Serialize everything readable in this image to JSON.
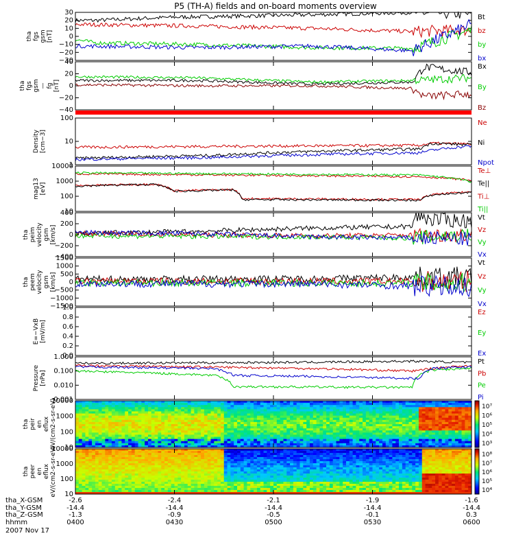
{
  "title": "P5 (TH-A) fields and on-board moments overview",
  "date": "2007 Nov 17",
  "orbit": {
    "row_labels": [
      "tha_X-GSM",
      "tha_Y-GSM",
      "tha_Z-GSM",
      "hhmm"
    ],
    "columns": [
      [
        "-2.6",
        "-14.4",
        "-1.3",
        "0400"
      ],
      [
        "-2.4",
        "-14.4",
        "-0.9",
        "0430"
      ],
      [
        "-2.1",
        "-14.4",
        "-0.5",
        "0500"
      ],
      [
        "-1.9",
        "-14.4",
        "-0.1",
        "0530"
      ],
      [
        "-1.6",
        "-14.4",
        "0.3",
        "0600"
      ]
    ]
  },
  "chart_data": [
    {
      "type": "line",
      "ylabel": "tha fgs gsm [nT]",
      "ylim": [
        -30,
        30
      ],
      "yticks": [
        "30",
        "20",
        "10",
        "0",
        "−10",
        "−20",
        "−30"
      ],
      "series": [
        {
          "name": "Bt",
          "color": "#000000"
        },
        {
          "name": "bz",
          "color": "#cc0000"
        },
        {
          "name": "by",
          "color": "#00cc00"
        },
        {
          "name": "bx",
          "color": "#0000cc"
        }
      ]
    },
    {
      "type": "line",
      "ylabel": "tha fgs gsm — fg [nT]",
      "ylim": [
        -50,
        40
      ],
      "yticks": [
        "40",
        "20",
        "0",
        "−20",
        "−40"
      ],
      "series": [
        {
          "name": "Bx",
          "color": "#000000"
        },
        {
          "name": "By",
          "color": "#00cc00"
        },
        {
          "name": "Bz",
          "color": "#880000"
        }
      ]
    },
    {
      "type": "line",
      "ylabel": "Density [cm−3]",
      "scale": "log",
      "ylim": [
        0.1,
        300
      ],
      "yticks": [
        "100",
        "10",
        "1"
      ],
      "series": [
        {
          "name": "Ne",
          "color": "#cc0000"
        },
        {
          "name": "Ni",
          "color": "#000000"
        },
        {
          "name": "Npot",
          "color": "#0000cc"
        }
      ]
    },
    {
      "type": "line",
      "ylabel": "mag13 [eV]",
      "scale": "log",
      "ylim": [
        3,
        10000
      ],
      "yticks": [
        "10000",
        "1000",
        "100",
        "10"
      ],
      "series": [
        {
          "name": "Te⊥",
          "color": "#cc0000"
        },
        {
          "name": "Te||",
          "color": "#000000"
        },
        {
          "name": "Ti⊥",
          "color": "#cc0000"
        },
        {
          "name": "Ti||",
          "color": "#00cc00"
        }
      ]
    },
    {
      "type": "line",
      "ylabel": "tha peim velocity gsm [km/s]",
      "ylim": [
        -400,
        400
      ],
      "yticks": [
        "400",
        "200",
        "0",
        "−200",
        "−400"
      ],
      "series": [
        {
          "name": "Vt",
          "color": "#000000"
        },
        {
          "name": "Vz",
          "color": "#cc0000"
        },
        {
          "name": "Vy",
          "color": "#00cc00"
        },
        {
          "name": "Vx",
          "color": "#0000cc"
        }
      ]
    },
    {
      "type": "line",
      "ylabel": "tha peem velocity gsm [km/s]",
      "ylim": [
        -1500,
        1500
      ],
      "yticks": [
        "1500",
        "1000",
        "500",
        "0",
        "−500",
        "−1000",
        "−1500"
      ],
      "series": [
        {
          "name": "Vt",
          "color": "#000000"
        },
        {
          "name": "Vz",
          "color": "#cc0000"
        },
        {
          "name": "Vy",
          "color": "#00cc00"
        },
        {
          "name": "Vx",
          "color": "#0000cc"
        }
      ]
    },
    {
      "type": "line",
      "ylabel": "E=−VxB [mV/m]",
      "ylim": [
        0,
        1
      ],
      "yticks": [
        "1.0",
        "0.8",
        "0.6",
        "0.4",
        "0.2",
        "0.0"
      ],
      "series": [
        {
          "name": "Ez",
          "color": "#cc0000"
        },
        {
          "name": "Ey",
          "color": "#00cc00"
        },
        {
          "name": "Ex",
          "color": "#0000cc"
        }
      ]
    },
    {
      "type": "line",
      "ylabel": "Pressure [nPa]",
      "scale": "log",
      "ylim": [
        0.001,
        1
      ],
      "yticks": [
        "1.000",
        "0.100",
        "0.010",
        "0.001"
      ],
      "series": [
        {
          "name": "Pt",
          "color": "#000000"
        },
        {
          "name": "Pb",
          "color": "#cc0000"
        },
        {
          "name": "Pe",
          "color": "#00cc00"
        },
        {
          "name": "Pi",
          "color": "#0000cc"
        }
      ]
    },
    {
      "type": "heatmap",
      "ylabel": "tha peir en eflux eV/(cm2-s-sr-eV)",
      "scale": "log",
      "ylim": [
        10,
        20000
      ],
      "yticks": [
        "10000",
        "1000",
        "100",
        "10"
      ],
      "colorbar": [
        "10⁷",
        "10⁶",
        "10⁵",
        "10⁴",
        "10³"
      ]
    },
    {
      "type": "heatmap",
      "ylabel": "tha peer en eflux eV/(cm2-s-sr-eV)",
      "scale": "log",
      "ylim": [
        8,
        20000
      ],
      "yticks": [
        "10000",
        "1000",
        "100",
        "10"
      ],
      "colorbar": [
        "10⁸",
        "10⁷",
        "10⁶",
        "10⁵",
        "10⁴"
      ]
    }
  ]
}
